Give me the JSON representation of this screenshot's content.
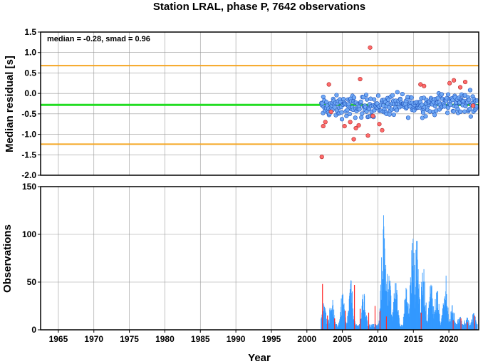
{
  "chart_data": [
    {
      "panel": "top",
      "type": "scatter",
      "title": "Station LRAL, phase P, 7642 observations",
      "annotation": "median = -0.28, smad = 0.96",
      "xlabel": "",
      "ylabel": "Median residual [s]",
      "xlim": [
        1962.5,
        2024.2
      ],
      "ylim": [
        -2.0,
        1.5
      ],
      "yticks": [
        "1.5",
        "1.0",
        "0.5",
        "0.0",
        "-0.5",
        "-1.0",
        "-1.5",
        "-2.0"
      ],
      "grid": true,
      "reference_lines": [
        {
          "kind": "median",
          "value": -0.28,
          "color": "#22dd22"
        },
        {
          "kind": "upper-bound",
          "value": 0.68,
          "color": "#f5a623"
        },
        {
          "kind": "lower-bound",
          "value": -1.24,
          "color": "#f5a623"
        }
      ],
      "series": [
        {
          "kind": "inlier",
          "color": "#6fa8f5",
          "x_range": [
            2002.0,
            2024.0
          ],
          "y_center": -0.28,
          "y_spread": 0.22,
          "count": 300
        },
        {
          "kind": "outlier",
          "color": "#ff6b6b",
          "points": [
            [
              2002.1,
              -1.55
            ],
            [
              2002.3,
              -0.8
            ],
            [
              2002.6,
              -0.7
            ],
            [
              2003.1,
              0.22
            ],
            [
              2003.4,
              -0.45
            ],
            [
              2005.3,
              -0.8
            ],
            [
              2006.1,
              -0.7
            ],
            [
              2006.6,
              -1.12
            ],
            [
              2006.9,
              -0.85
            ],
            [
              2007.3,
              -0.78
            ],
            [
              2007.5,
              0.35
            ],
            [
              2008.6,
              -1.03
            ],
            [
              2008.9,
              1.12
            ],
            [
              2009.3,
              -0.55
            ],
            [
              2010.2,
              -0.75
            ],
            [
              2010.6,
              -0.9
            ],
            [
              2016.0,
              0.22
            ],
            [
              2016.5,
              0.18
            ],
            [
              2020.1,
              0.25
            ],
            [
              2020.7,
              0.32
            ],
            [
              2021.6,
              0.15
            ],
            [
              2022.3,
              0.28
            ],
            [
              2023.4,
              -0.3
            ]
          ]
        }
      ]
    },
    {
      "panel": "bottom",
      "type": "bar",
      "xlabel": "Year",
      "ylabel": "Observations",
      "xlim": [
        1962.5,
        2024.2
      ],
      "ylim": [
        0,
        150
      ],
      "yticks": [
        "0",
        "50",
        "100",
        "150"
      ],
      "xticks": [
        "1965",
        "1970",
        "1975",
        "1980",
        "1985",
        "1990",
        "1995",
        "2000",
        "2005",
        "2010",
        "2015",
        "2020"
      ],
      "grid": true,
      "series": [
        {
          "kind": "inlier-counts",
          "color": "#3399ff",
          "x_range": [
            2002.0,
            2024.0
          ],
          "peaks": [
            [
              2002.4,
              28
            ],
            [
              2003.5,
              35
            ],
            [
              2005.0,
              38
            ],
            [
              2006.2,
              52
            ],
            [
              2008.0,
              40
            ],
            [
              2010.8,
              120
            ],
            [
              2011.5,
              70
            ],
            [
              2012.5,
              50
            ],
            [
              2014.0,
              45
            ],
            [
              2014.9,
              104
            ],
            [
              2015.5,
              95
            ],
            [
              2016.4,
              70
            ],
            [
              2017.5,
              55
            ],
            [
              2018.3,
              45
            ],
            [
              2019.5,
              60
            ],
            [
              2020.5,
              26
            ],
            [
              2021.5,
              16
            ],
            [
              2022.5,
              15
            ],
            [
              2023.5,
              18
            ]
          ]
        },
        {
          "kind": "outlier-counts",
          "color": "#ff2a2a",
          "points": [
            [
              2002.2,
              48
            ],
            [
              2002.9,
              15
            ],
            [
              2003.9,
              12
            ],
            [
              2005.4,
              20
            ],
            [
              2006.7,
              47
            ],
            [
              2007.5,
              22
            ],
            [
              2008.7,
              18
            ],
            [
              2009.6,
              25
            ],
            [
              2010.3,
              20
            ],
            [
              2011.2,
              14
            ],
            [
              2016.1,
              18
            ],
            [
              2020.6,
              10
            ],
            [
              2021.7,
              12
            ],
            [
              2022.6,
              8
            ],
            [
              2023.6,
              15
            ]
          ]
        }
      ]
    }
  ]
}
